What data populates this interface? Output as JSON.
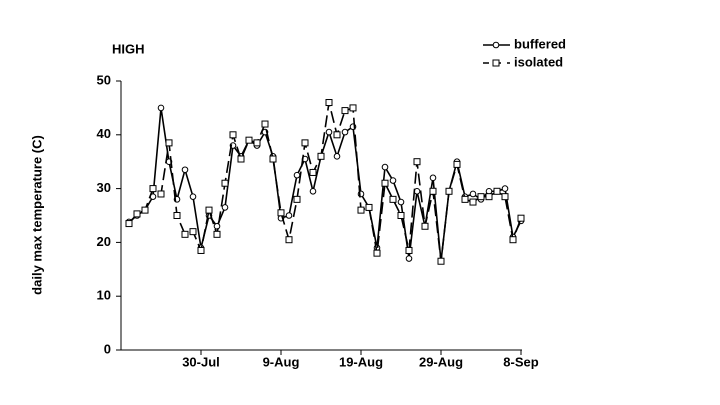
{
  "chart_data": {
    "type": "line",
    "title": "HIGH",
    "y_label": "daily max temperature (C)",
    "categories": [
      null,
      null,
      null,
      null,
      null,
      null,
      null,
      null,
      null,
      null,
      "30-Jul",
      null,
      null,
      null,
      null,
      null,
      null,
      null,
      null,
      null,
      "9-Aug",
      null,
      null,
      null,
      null,
      null,
      null,
      null,
      null,
      null,
      "19-Aug",
      null,
      null,
      null,
      null,
      null,
      null,
      null,
      null,
      null,
      "29-Aug",
      null,
      null,
      null,
      null,
      null,
      null,
      null,
      null,
      null,
      "8-Sep"
    ],
    "series": [
      {
        "name": "buffered",
        "color": "#000000",
        "dashed": false,
        "marker": "circle",
        "values": [
          null,
          23.8,
          25,
          26,
          28.5,
          45,
          35,
          28,
          33.5,
          28.5,
          19,
          25,
          23,
          26.5,
          38,
          36,
          39,
          38,
          40.5,
          36,
          24.5,
          25,
          32.5,
          35.5,
          29.5,
          36,
          40.5,
          36,
          40.5,
          41.5,
          29,
          26.5,
          19,
          34,
          31.5,
          27.5,
          17,
          29.5,
          23,
          32,
          16.5,
          29.5,
          35,
          28.5,
          29,
          28,
          29.5,
          29.5,
          30,
          21,
          24
        ]
      },
      {
        "name": "isolated",
        "color": "#000000",
        "dashed": true,
        "marker": "square",
        "values": [
          null,
          23.5,
          25.3,
          26,
          30,
          29,
          38.5,
          25,
          21.5,
          22,
          18.5,
          26,
          21.5,
          31,
          40,
          35.5,
          39,
          38.5,
          42,
          35.5,
          25.5,
          20.5,
          28,
          38.5,
          33,
          36,
          46,
          40,
          44.5,
          45,
          26,
          26.5,
          18,
          31,
          28,
          25,
          18.5,
          35,
          23,
          29.5,
          16.5,
          29.5,
          34.5,
          28,
          27.5,
          28.5,
          28.5,
          29.5,
          28.5,
          20.5,
          24.5
        ]
      }
    ],
    "ylim": [
      0,
      50
    ],
    "yticks": [
      0,
      10,
      20,
      30,
      40,
      50
    ],
    "grid": false,
    "legend": "top-right"
  }
}
